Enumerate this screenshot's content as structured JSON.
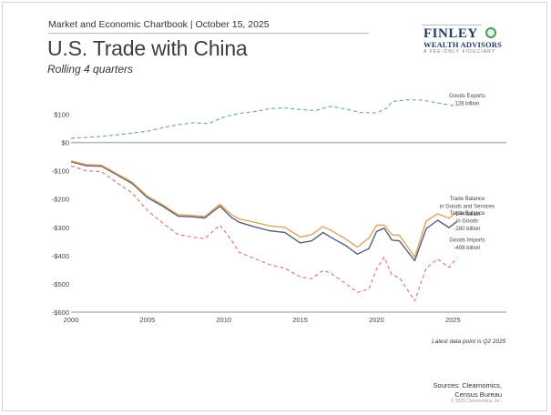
{
  "header": {
    "chartbook": "Market and Economic Chartbook | October 15, 2025",
    "title": "U.S. Trade with China",
    "subtitle": "Rolling 4 quarters"
  },
  "logo": {
    "name": "FINLEY",
    "sub": "WEALTH ADVISORS",
    "tagline": "A FEE-ONLY FIDUCIARY",
    "color": "#1f3a6b"
  },
  "footer": {
    "note": "Latest data point is Q2 2025",
    "sources_line1": "Sources: Clearnomics,",
    "sources_line2": "Census Bureau",
    "copyright": "© 2025 Clearnomics, Inc."
  },
  "chart_data": {
    "type": "line",
    "title": "U.S. Trade with China",
    "subtitle": "Rolling 4 quarters",
    "xlabel": "",
    "ylabel": "",
    "xlim": [
      2000,
      2028.5
    ],
    "ylim": [
      -600,
      150
    ],
    "x_ticks": [
      2000,
      2005,
      2010,
      2015,
      2020,
      2025
    ],
    "x_tick_labels": [
      "2000",
      "2005",
      "2010",
      "2015",
      "2020",
      "2025"
    ],
    "y_ticks": [
      100,
      0,
      -100,
      -200,
      -300,
      -400,
      -500,
      -600
    ],
    "y_tick_labels": [
      "$100",
      "$0",
      "-$100",
      "-$200",
      "-$300",
      "-$400",
      "-$500",
      "-$600"
    ],
    "grid": false,
    "series": [
      {
        "name": "Goods Exports",
        "label_line1": "Goods Exports",
        "label_line2": "128 billion",
        "color": "#6aaa7e",
        "dash": true,
        "x": [
          2000,
          2001,
          2002,
          2003,
          2004,
          2005,
          2006,
          2007,
          2008,
          2009,
          2010,
          2011,
          2012,
          2013,
          2014,
          2015,
          2016,
          2017,
          2018,
          2019,
          2020,
          2020.75,
          2021,
          2022,
          2023,
          2024,
          2025.25
        ],
        "values": [
          15,
          18,
          22,
          27,
          33,
          40,
          52,
          63,
          70,
          67,
          90,
          103,
          109,
          120,
          122,
          117,
          113,
          128,
          118,
          106,
          105,
          123,
          145,
          151,
          150,
          140,
          128
        ]
      },
      {
        "name": "Trade Balance in Goods and Services",
        "label_line1": "Trade Balance",
        "label_line2": "in Goods and Services",
        "label_line3": "-244 billion",
        "color": "#e0a460",
        "dash": false,
        "x": [
          2000,
          2001,
          2002,
          2003,
          2004,
          2005,
          2006,
          2007,
          2008,
          2008.75,
          2009.75,
          2010.5,
          2011,
          2012,
          2013,
          2014,
          2015,
          2015.75,
          2016.5,
          2017,
          2018,
          2018.75,
          2019.5,
          2020,
          2020.5,
          2021,
          2021.5,
          2022.5,
          2023.25,
          2024,
          2024.75,
          2025.25
        ],
        "values": [
          -65,
          -78,
          -80,
          -110,
          -140,
          -190,
          -220,
          -255,
          -258,
          -262,
          -218,
          -255,
          -270,
          -282,
          -295,
          -300,
          -334,
          -326,
          -297,
          -310,
          -342,
          -370,
          -338,
          -293,
          -292,
          -326,
          -328,
          -405,
          -278,
          -252,
          -268,
          -244
        ]
      },
      {
        "name": "Trade Balance in Goods",
        "label_line1": "Trade Balance",
        "label_line2": "in Goods",
        "label_line3": "-280 billion",
        "color": "#51607a",
        "dash": false,
        "x": [
          2000,
          2001,
          2002,
          2003,
          2004,
          2005,
          2006,
          2007,
          2008,
          2008.75,
          2009.75,
          2010.5,
          2011,
          2012,
          2013,
          2014,
          2015,
          2015.75,
          2016.5,
          2017,
          2018,
          2018.75,
          2019.5,
          2020,
          2020.5,
          2021,
          2021.5,
          2022.5,
          2023.25,
          2024,
          2024.75,
          2025.25
        ],
        "values": [
          -68,
          -82,
          -84,
          -114,
          -145,
          -195,
          -225,
          -260,
          -263,
          -267,
          -225,
          -265,
          -282,
          -298,
          -312,
          -318,
          -355,
          -348,
          -318,
          -335,
          -365,
          -395,
          -375,
          -315,
          -303,
          -345,
          -348,
          -418,
          -305,
          -275,
          -301,
          -280
        ]
      },
      {
        "name": "Goods Imports",
        "label_line1": "Goods Imports",
        "label_line2": "-408 billion",
        "color": "#e07070",
        "dash": true,
        "x": [
          2000,
          2001,
          2002,
          2003,
          2004,
          2005,
          2006,
          2007,
          2008,
          2008.75,
          2009.75,
          2010.5,
          2011,
          2012,
          2013,
          2014,
          2015,
          2015.75,
          2016.5,
          2017,
          2018,
          2018.75,
          2019.5,
          2020,
          2020.5,
          2021,
          2021.5,
          2022.5,
          2023.25,
          2024,
          2024.75,
          2025.25
        ],
        "values": [
          -83,
          -100,
          -103,
          -142,
          -178,
          -240,
          -285,
          -325,
          -335,
          -340,
          -292,
          -345,
          -388,
          -410,
          -432,
          -445,
          -475,
          -482,
          -452,
          -462,
          -500,
          -530,
          -518,
          -448,
          -405,
          -468,
          -478,
          -560,
          -445,
          -412,
          -442,
          -408
        ]
      }
    ]
  }
}
